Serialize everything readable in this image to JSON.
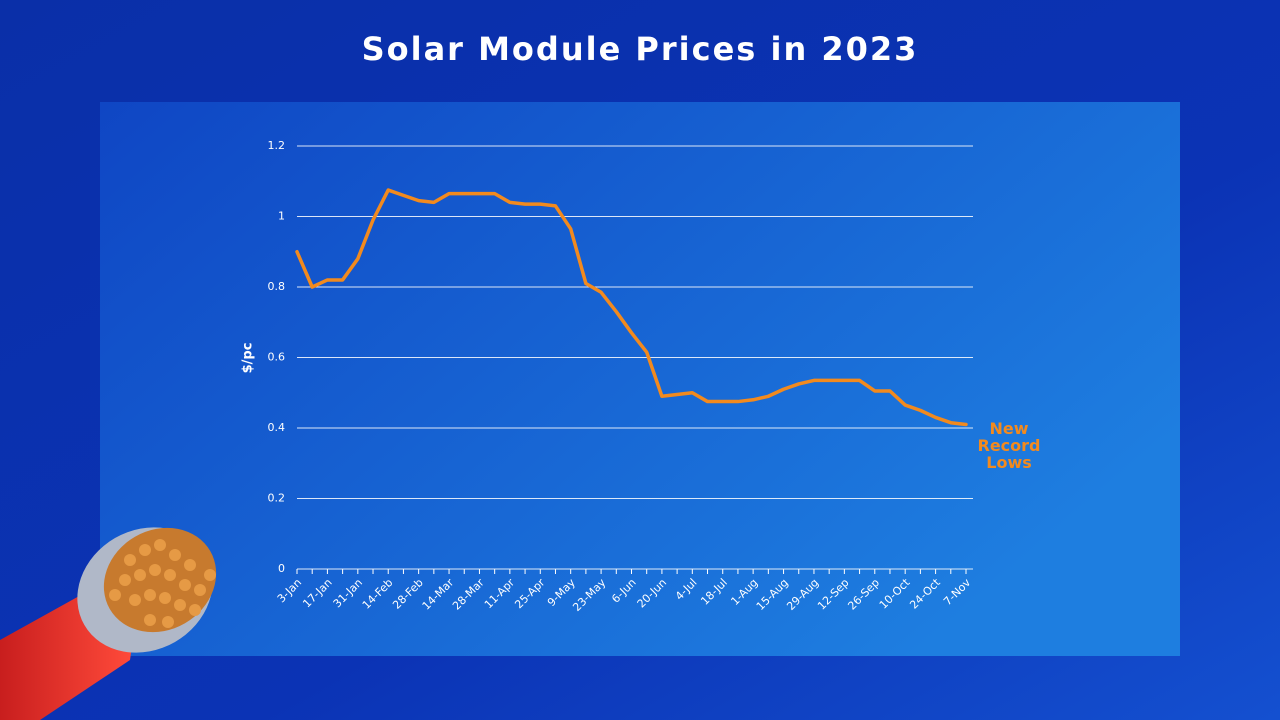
{
  "chart_data": {
    "type": "line",
    "title": "Solar Module Prices in 2023",
    "y_label": "$/pc",
    "annotation": "New Record Lows",
    "categories": [
      "3-Jan",
      null,
      "17-Jan",
      null,
      "31-Jan",
      null,
      "14-Feb",
      null,
      "28-Feb",
      null,
      "14-Mar",
      null,
      "28-Mar",
      null,
      "11-Apr",
      null,
      "25-Apr",
      null,
      "9-May",
      null,
      "23-May",
      null,
      "6-Jun",
      null,
      "20-Jun",
      null,
      "4-Jul",
      null,
      "18-Jul",
      null,
      "1-Aug",
      null,
      "15-Aug",
      null,
      "29-Aug",
      null,
      "12-Sep",
      null,
      "26-Sep",
      null,
      "10-Oct",
      null,
      "24-Oct",
      null,
      "7-Nov"
    ],
    "series": [
      {
        "name": "$/pc",
        "color": "#f28a1e",
        "values": [
          0.9,
          0.8,
          0.82,
          0.82,
          0.88,
          0.99,
          1.075,
          1.06,
          1.045,
          1.04,
          1.065,
          1.065,
          1.065,
          1.065,
          1.04,
          1.035,
          1.035,
          1.03,
          0.965,
          0.81,
          0.785,
          0.73,
          0.67,
          0.615,
          0.49,
          0.495,
          0.5,
          0.475,
          0.475,
          0.475,
          0.48,
          0.49,
          0.51,
          0.525,
          0.535,
          0.535,
          0.535,
          0.535,
          0.505,
          0.505,
          0.465,
          0.45,
          0.43,
          0.415,
          0.41
        ]
      }
    ],
    "ylim": [
      0,
      1.2
    ],
    "yticks": [
      0,
      0.2,
      0.4,
      0.6,
      0.8,
      1,
      1.2
    ],
    "grid": true
  }
}
